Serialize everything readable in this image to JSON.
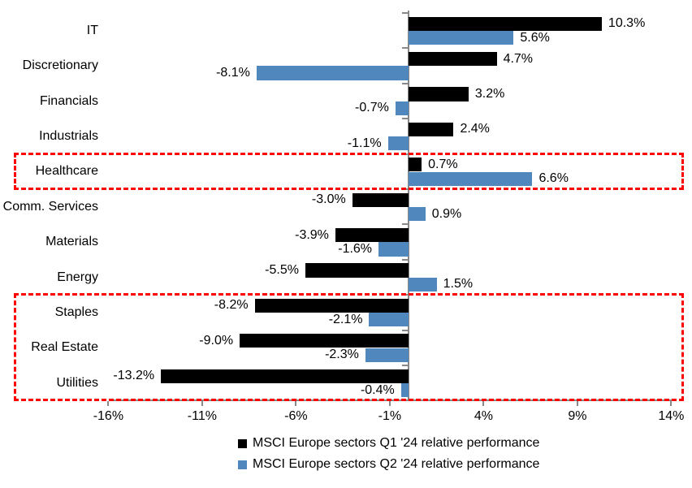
{
  "chart_data": {
    "type": "bar",
    "orientation": "horizontal",
    "title": "",
    "categories": [
      "IT",
      "Discretionary",
      "Financials",
      "Industrials",
      "Healthcare",
      "Comm. Services",
      "Materials",
      "Energy",
      "Staples",
      "Real Estate",
      "Utilities"
    ],
    "series": [
      {
        "name": "MSCI Europe sectors Q1 '24 relative performance",
        "color": "#000000",
        "values": [
          10.3,
          4.7,
          3.2,
          2.4,
          0.7,
          -3.0,
          -3.9,
          -5.5,
          -8.2,
          -9.0,
          -13.2
        ]
      },
      {
        "name": "MSCI Europe sectors Q2 '24 relative performance",
        "color": "#5088BE",
        "values": [
          5.6,
          -8.1,
          -0.7,
          -1.1,
          6.6,
          0.9,
          -1.6,
          1.5,
          -2.1,
          -2.3,
          -0.4
        ]
      }
    ],
    "value_labels": [
      [
        "10.3%",
        "4.7%",
        "3.2%",
        "2.4%",
        "0.7%",
        "-3.0%",
        "-3.9%",
        "-5.5%",
        "-8.2%",
        "-9.0%",
        "-13.2%"
      ],
      [
        "5.6%",
        "-8.1%",
        "-0.7%",
        "-1.1%",
        "6.6%",
        "0.9%",
        "-1.6%",
        "1.5%",
        "-2.1%",
        "-2.3%",
        "-0.4%"
      ]
    ],
    "xlim": [
      -16,
      14
    ],
    "x_ticks": [
      -16,
      -11,
      -6,
      -1,
      4,
      9,
      14
    ],
    "x_tick_labels": [
      "-16%",
      "-11%",
      "-6%",
      "-1%",
      "4%",
      "9%",
      "14%"
    ],
    "grid": false,
    "axis_color": "#888888",
    "legend_position": "bottom",
    "highlight_boxes": [
      {
        "rows": [
          "Healthcare"
        ],
        "color": "#FF0000",
        "style": "dashed"
      },
      {
        "rows": [
          "Staples",
          "Real Estate",
          "Utilities"
        ],
        "color": "#FF0000",
        "style": "dashed"
      }
    ]
  }
}
